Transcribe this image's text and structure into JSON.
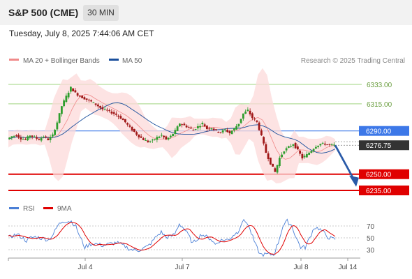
{
  "header": {
    "title": "S&P 500 (CME)",
    "timeframe": "30 MIN"
  },
  "timestamp": "Tuesday, July 8, 2025 7:44:06 AM CET",
  "chart_data": [
    {
      "type": "candlestick",
      "legend": [
        {
          "label": "MA 20 + Bollinger Bands",
          "color": "#f08a8a"
        },
        {
          "label": "MA 50",
          "color": "#1a4f9c"
        }
      ],
      "legend_placement": "top-left",
      "source": "Research © 2025 Trading Central",
      "ylim": [
        6240,
        6345
      ],
      "x_ticks": [
        "Jul 4",
        "Jul 7",
        "Jul 8",
        "Jul 14"
      ],
      "levels": [
        {
          "value": 6333.0,
          "label": "6333.00",
          "color": "#9fd47f",
          "style": "green-thin"
        },
        {
          "value": 6315.0,
          "label": "6315.00",
          "color": "#9fd47f",
          "style": "green-thin"
        },
        {
          "value": 6290.0,
          "label": "6290.00",
          "color": "#3d78e8",
          "style": "blue-box"
        },
        {
          "value": 6276.75,
          "label": "6276.75",
          "color": "#333333",
          "style": "price-box"
        },
        {
          "value": 6250.0,
          "label": "6250.00",
          "color": "#e00000",
          "style": "red-box"
        },
        {
          "value": 6235.0,
          "label": "6235.00",
          "color": "#e00000",
          "style": "red-box"
        }
      ],
      "forecast_arrow": {
        "from": 6276.75,
        "to": 6241,
        "color": "#2a5aa8"
      },
      "candle_colors": {
        "up": "#2e9e2e",
        "down": "#a01818"
      },
      "price_path": [
        6282.5,
        6285,
        6286,
        6283,
        6282,
        6286,
        6284,
        6282,
        6285,
        6282,
        6286,
        6298,
        6313,
        6322,
        6330,
        6325,
        6322,
        6320,
        6318,
        6316,
        6313,
        6310,
        6309,
        6307,
        6305,
        6302,
        6298,
        6293,
        6289,
        6285,
        6282,
        6280,
        6281,
        6284,
        6286,
        6282,
        6285,
        6290,
        6297,
        6295,
        6293,
        6291,
        6294,
        6297,
        6292,
        6293,
        6290,
        6289,
        6291,
        6288,
        6292,
        6297,
        6306,
        6309,
        6302,
        6298,
        6285,
        6270,
        6260,
        6252,
        6265,
        6272,
        6275,
        6278,
        6272,
        6265,
        6268,
        6272,
        6276,
        6278,
        6278,
        6277,
        6276.75
      ]
    },
    {
      "type": "line",
      "legend": [
        {
          "label": "RSI",
          "color": "#4a7fd6"
        },
        {
          "label": "9MA",
          "color": "#e00000"
        }
      ],
      "yticks": [
        70,
        50,
        30
      ],
      "ylim": [
        18,
        82
      ]
    }
  ]
}
